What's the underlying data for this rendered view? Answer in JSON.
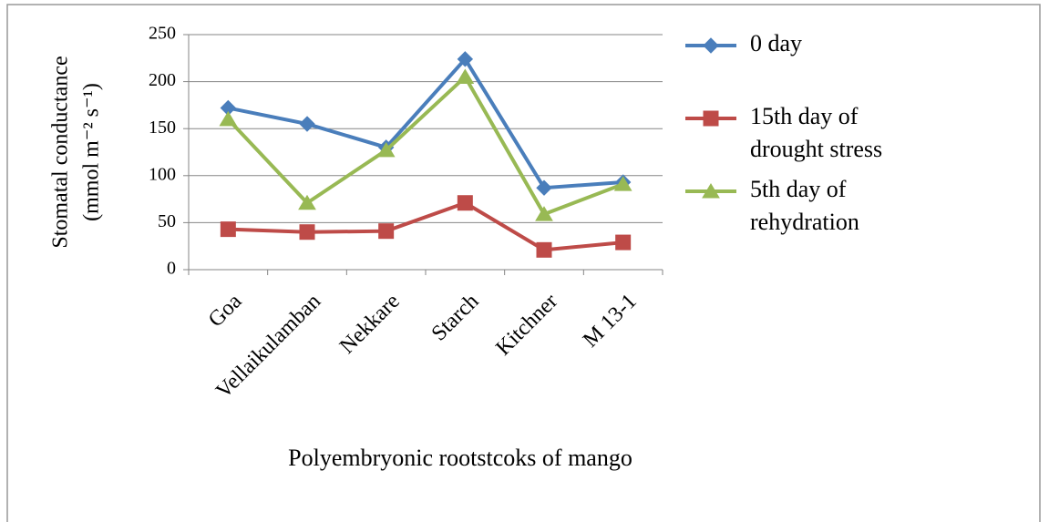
{
  "chart_data": {
    "type": "line",
    "x_label": "Polyembryonic rootstcoks of mango",
    "y_label": [
      "Stomatal conductance",
      "(mmol m⁻² s⁻¹)"
    ],
    "categories": [
      "Goa",
      "Vellaikulamban",
      "Nekkare",
      "Starch",
      "Kitchner",
      "M 13-1"
    ],
    "series": [
      {
        "name": "0 day",
        "color": "#4a7ebb",
        "marker": "diamond",
        "values": [
          172,
          155,
          130,
          224,
          87,
          93
        ]
      },
      {
        "name": "15th day of drought stress",
        "color": "#be4b48",
        "marker": "square",
        "values": [
          43,
          40,
          41,
          71,
          21,
          29
        ]
      },
      {
        "name": "5th day of rehydration",
        "color": "#98b954",
        "marker": "triangle",
        "values": [
          160,
          71,
          127,
          205,
          59,
          91
        ]
      }
    ],
    "ylim": [
      0,
      250
    ],
    "yticks": [
      0,
      50,
      100,
      150,
      200,
      250
    ],
    "grid": true,
    "legend": "right"
  }
}
